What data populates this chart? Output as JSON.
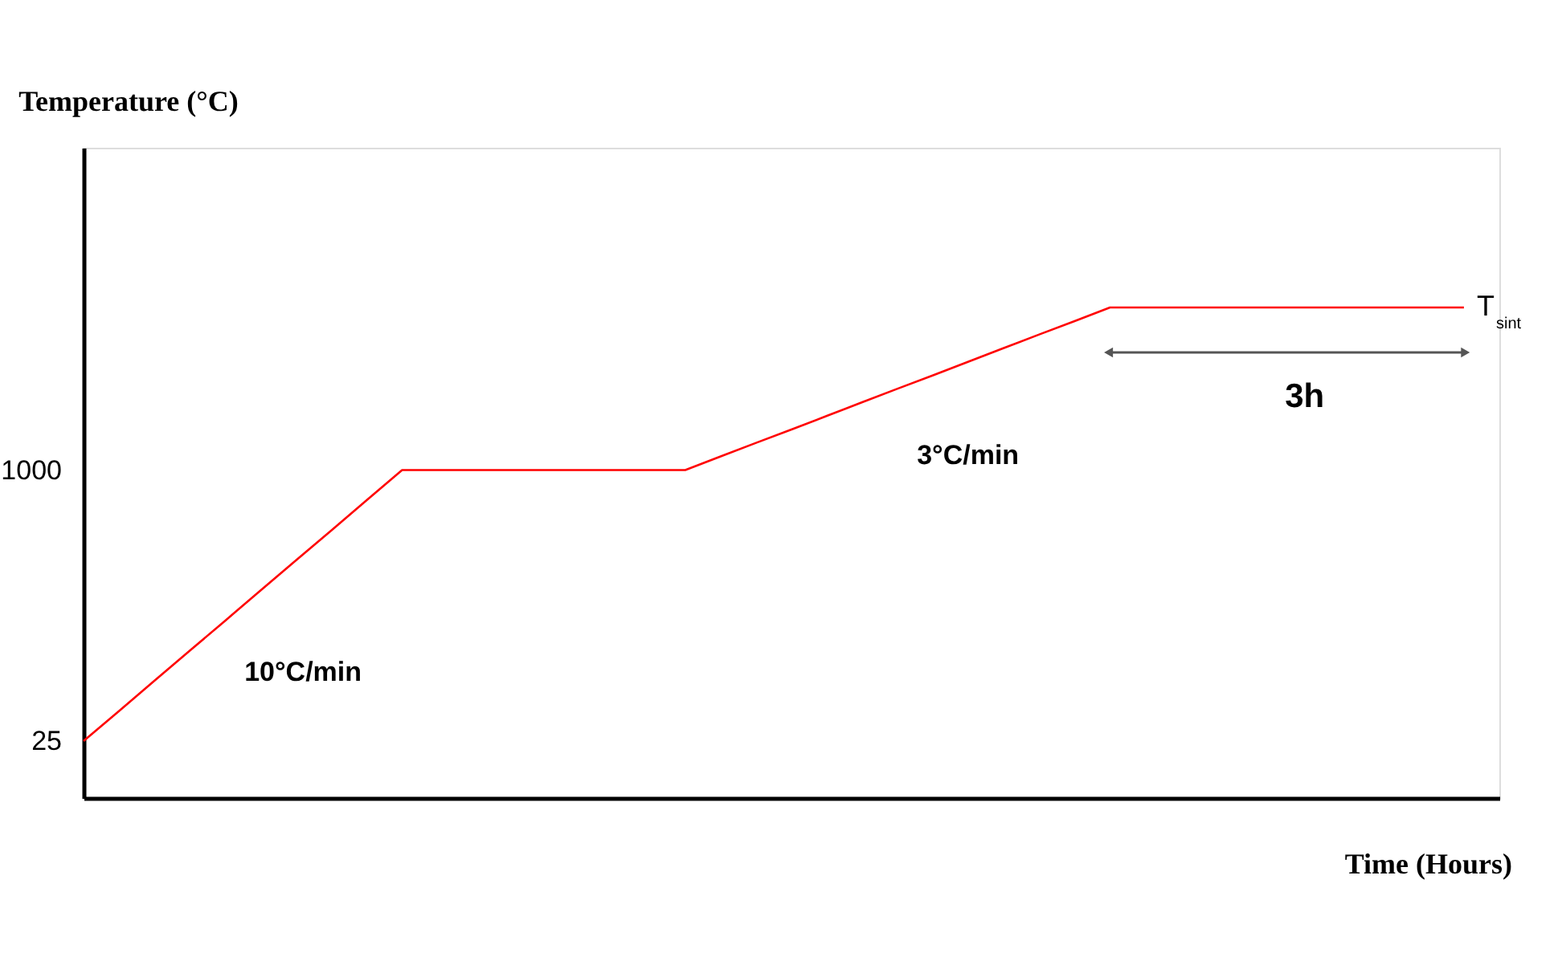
{
  "chart_data": {
    "type": "line",
    "categories": [
      null,
      null,
      null,
      null,
      null,
      null,
      null,
      null,
      null,
      null,
      null,
      null,
      null,
      null,
      null,
      null,
      null,
      null,
      null,
      null,
      null,
      null,
      null,
      null,
      null,
      null,
      null,
      null,
      null,
      null,
      null,
      null,
      null,
      null,
      null,
      null,
      null,
      null,
      null,
      null
    ],
    "series": [
      {
        "color": "#ff0000",
        "values": [
          25,
          133,
          242,
          350,
          458,
          567,
          675,
          783,
          892,
          1000,
          1000,
          1000,
          1000,
          1000,
          1000,
          1000,
          1000,
          1000,
          1049,
          1098,
          1146,
          1195,
          1244,
          1293,
          1341,
          1390,
          1439,
          1488,
          1536,
          1585,
          1585,
          1585,
          1585,
          1585,
          1585,
          1585,
          1585,
          1585,
          1585,
          1585
        ]
      }
    ],
    "ylim": [
      -180,
      2160
    ],
    "yticks": [
      25,
      1000
    ],
    "tick_labels": "y",
    "grid": false,
    "marker": "none",
    "line_style": "solid",
    "xlabel": "Time (Hours)",
    "ylabel": "Temperature (°C)",
    "annotations": [
      "10°C/min",
      "3°C/min",
      "3h",
      "T$_{sint}$"
    ]
  }
}
